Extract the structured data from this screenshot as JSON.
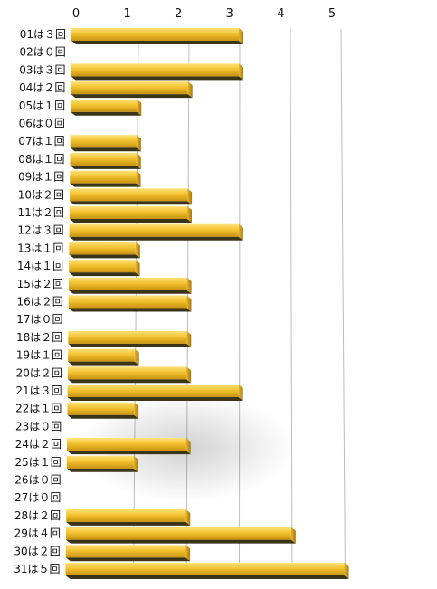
{
  "chart_data": {
    "type": "bar",
    "orientation": "horizontal",
    "title": "",
    "xlabel": "",
    "ylabel": "",
    "x_ticks": [
      "0",
      "1",
      "2",
      "3",
      "4",
      "5"
    ],
    "xlim": [
      0,
      5
    ],
    "grid": true,
    "legend": "none",
    "categories": [
      "01は３回",
      "02は０回",
      "03は３回",
      "04は２回",
      "05は１回",
      "06は０回",
      "07は１回",
      "08は１回",
      "09は１回",
      "10は２回",
      "11は２回",
      "12は３回",
      "13は１回",
      "14は１回",
      "15は２回",
      "16は２回",
      "17は０回",
      "18は２回",
      "19は１回",
      "20は２回",
      "21は３回",
      "22は１回",
      "23は０回",
      "24は２回",
      "25は１回",
      "26は０回",
      "27は０回",
      "28は２回",
      "29は４回",
      "30は２回",
      "31は５回"
    ],
    "values": [
      3,
      0,
      3,
      2,
      1,
      0,
      1,
      1,
      1,
      2,
      2,
      3,
      1,
      1,
      2,
      2,
      0,
      2,
      1,
      2,
      3,
      1,
      0,
      2,
      1,
      0,
      0,
      2,
      4,
      2,
      5
    ],
    "colors": {
      "bar_top": "#f3c53a",
      "bar_face": "#d9a51c",
      "bar_shadow": "#3a3418",
      "grid": "#bdbdbd",
      "text": "#111111"
    }
  }
}
